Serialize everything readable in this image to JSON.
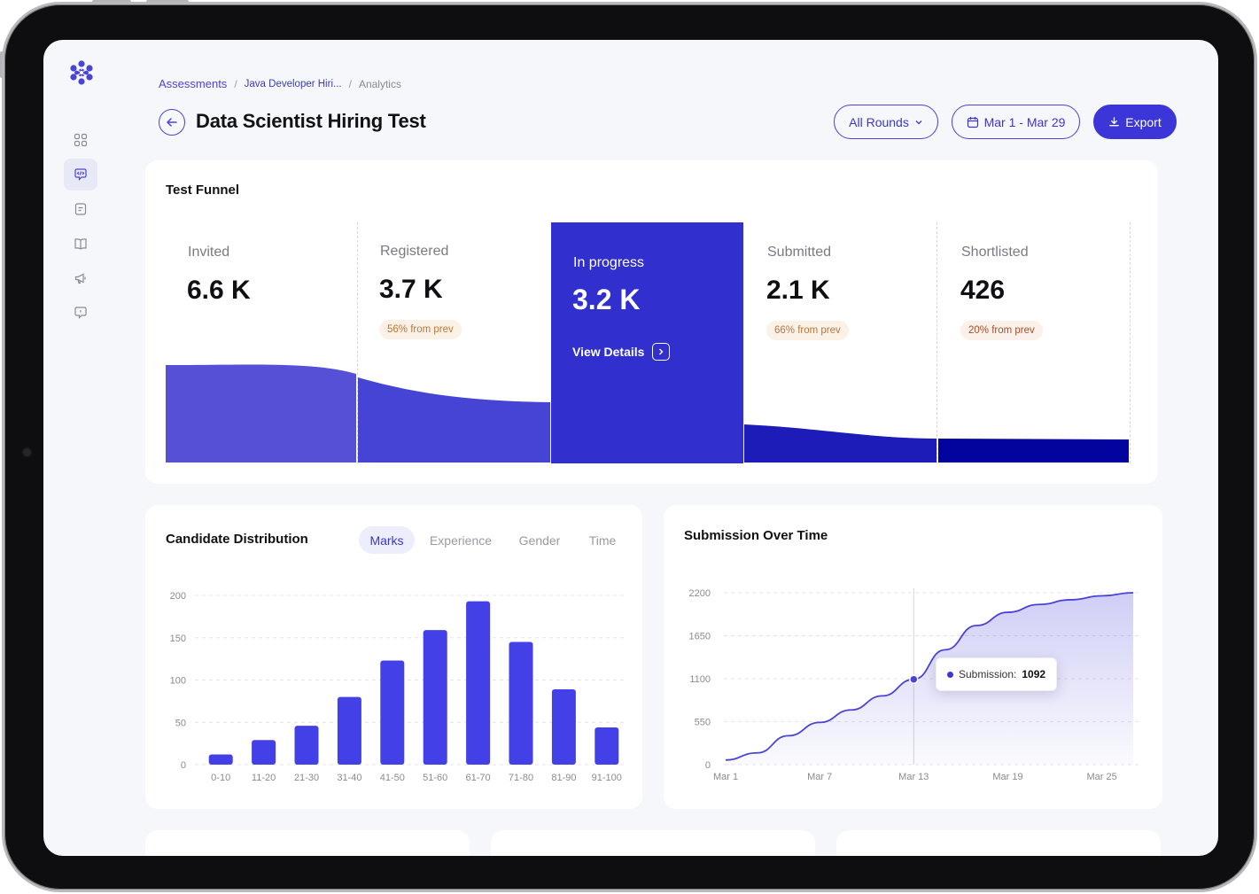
{
  "breadcrumb": {
    "items": [
      "Assessments",
      "Java Developer Hiri...",
      "Analytics"
    ],
    "separator": "/"
  },
  "header": {
    "title": "Data Scientist Hiring Test",
    "rounds_label": "All Rounds",
    "date_range_label": "Mar 1 - Mar 29",
    "export_label": "Export"
  },
  "sidebar": {
    "items": [
      {
        "icon": "grid-icon"
      },
      {
        "icon": "code-chat-icon",
        "active": true
      },
      {
        "icon": "document-icon"
      },
      {
        "icon": "book-icon"
      },
      {
        "icon": "megaphone-icon"
      },
      {
        "icon": "help-chat-icon"
      }
    ]
  },
  "funnel": {
    "title": "Test Funnel",
    "stages": [
      {
        "label": "Invited",
        "value": "6.6 K",
        "badge": ""
      },
      {
        "label": "Registered",
        "value": "3.7 K",
        "badge": "56% from prev"
      },
      {
        "label": "In progress",
        "value": "3.2 K",
        "action": "View Details"
      },
      {
        "label": "Submitted",
        "value": "2.1 K",
        "badge": "66% from prev"
      },
      {
        "label": "Shortlisted",
        "value": "426",
        "badge": "20% from prev"
      }
    ]
  },
  "distribution": {
    "title": "Candidate Distribution",
    "tabs": [
      "Marks",
      "Experience",
      "Gender",
      "Time"
    ],
    "active_tab": "Marks"
  },
  "submissions": {
    "title": "Submission Over Time",
    "tooltip_label": "Submission:",
    "tooltip_value": "1092"
  },
  "chart_data": [
    {
      "type": "bar",
      "title": "Candidate Distribution",
      "categories": [
        "0-10",
        "11-20",
        "21-30",
        "31-40",
        "41-50",
        "51-60",
        "61-70",
        "71-80",
        "81-90",
        "91-100"
      ],
      "values": [
        12,
        29,
        46,
        80,
        123,
        159,
        193,
        145,
        89,
        44
      ],
      "yticks": [
        "0",
        "50",
        "100",
        "150",
        "200"
      ],
      "ylim": [
        0,
        200
      ],
      "color": "#4340e8"
    },
    {
      "type": "area",
      "title": "Submission Over Time",
      "xticks": [
        "Mar 1",
        "Mar 7",
        "Mar 13",
        "Mar 19",
        "Mar 25"
      ],
      "yticks": [
        "0",
        "550",
        "1100",
        "1650",
        "2200"
      ],
      "ylim": [
        0,
        2200
      ],
      "x": [
        "Mar 1",
        "Mar 3",
        "Mar 5",
        "Mar 7",
        "Mar 9",
        "Mar 11",
        "Mar 13",
        "Mar 15",
        "Mar 17",
        "Mar 19",
        "Mar 21",
        "Mar 23",
        "Mar 25",
        "Mar 27"
      ],
      "values": [
        60,
        150,
        370,
        540,
        700,
        880,
        1092,
        1470,
        1780,
        1950,
        2050,
        2110,
        2160,
        2200
      ],
      "highlight": {
        "x": "Mar 13",
        "value": 1092
      },
      "color": "#4a43d8"
    }
  ]
}
